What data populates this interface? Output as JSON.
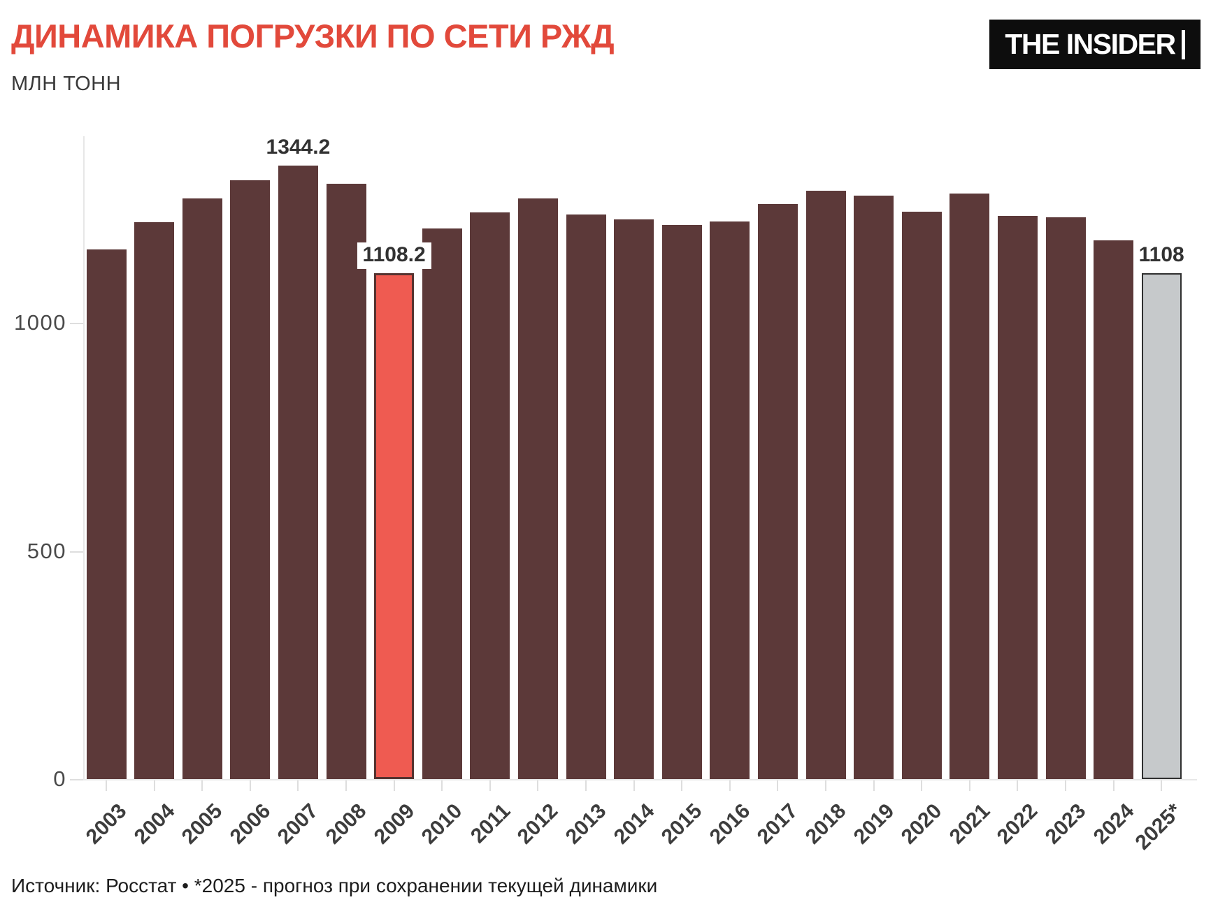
{
  "header": {
    "title": "ДИНАМИКА ПОГРУЗКИ ПО СЕТИ РЖД",
    "subtitle": "МЛН ТОНН",
    "logo": "THE INSIDER"
  },
  "footer": {
    "text": "Источник: Росстат • *2025 - прогноз при сохранении текущей динамики"
  },
  "chart_data": {
    "type": "bar",
    "title": "ДИНАМИКА ПОГРУЗКИ ПО СЕТИ РЖД",
    "ylabel": "МЛН ТОНН",
    "xlabel": "",
    "ylim": [
      0,
      1400
    ],
    "yticks": [
      0,
      500,
      1000
    ],
    "grid": false,
    "legend": false,
    "categories": [
      "2003",
      "2004",
      "2005",
      "2006",
      "2007",
      "2008",
      "2009",
      "2010",
      "2011",
      "2012",
      "2013",
      "2014",
      "2015",
      "2016",
      "2017",
      "2018",
      "2019",
      "2020",
      "2021",
      "2022",
      "2023",
      "2024",
      "2025*"
    ],
    "values": [
      1161,
      1221,
      1273,
      1312,
      1344.2,
      1304,
      1108.2,
      1206,
      1242,
      1272,
      1237,
      1227,
      1214,
      1222,
      1261,
      1290,
      1278,
      1244,
      1283,
      1234,
      1232,
      1181,
      1108
    ],
    "highlighted_categories": {
      "2009": "red",
      "2025*": "forecast"
    },
    "annotations": [
      {
        "category": "2007",
        "text": "1344.2",
        "boxed": false
      },
      {
        "category": "2009",
        "text": "1108.2",
        "boxed": true
      },
      {
        "category": "2025*",
        "text": "1108",
        "boxed": false
      }
    ]
  },
  "colors": {
    "title": "#e2493b",
    "bar": "#5c3939",
    "red_fill": "#ef5b51",
    "red_border": "#553330",
    "forecast_fill": "#c6c9cb",
    "forecast_border": "#2f2f2f",
    "axis": "#e7e7e7",
    "annotation_text": "#323232"
  }
}
